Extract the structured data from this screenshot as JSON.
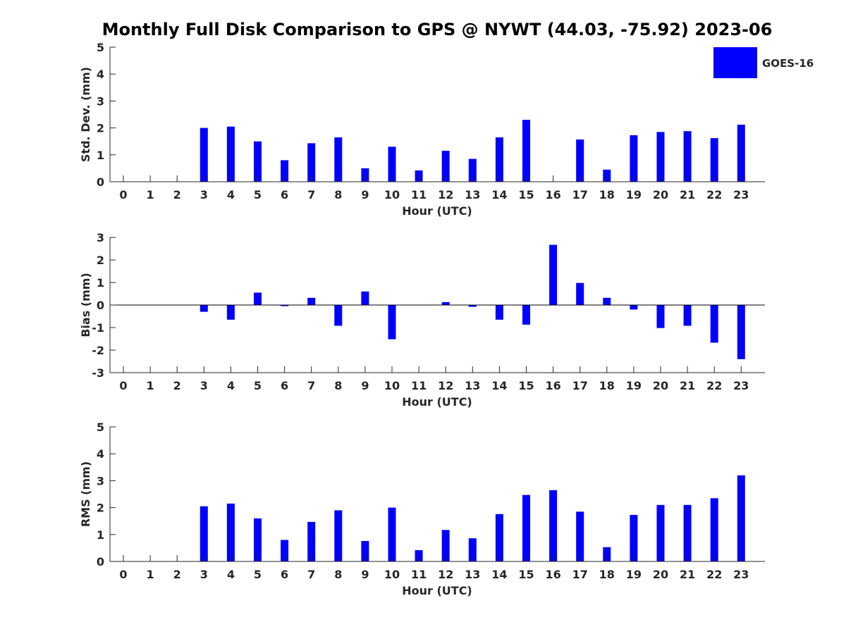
{
  "title": "Monthly Full Disk Comparison to GPS @ NYWT (44.03, -75.92) 2023-06",
  "colors": {
    "bar": "#0000ff",
    "axis": "#262626",
    "background": "#ffffff"
  },
  "legend": {
    "label": "GOES-16",
    "placement": "top-right"
  },
  "chart_data": [
    {
      "type": "bar",
      "title": "",
      "xlabel": "Hour (UTC)",
      "ylabel": "Std. Dev. (mm)",
      "ylim": [
        0,
        5
      ],
      "yticks": [
        0,
        1,
        2,
        3,
        4,
        5
      ],
      "categories": [
        "0",
        "1",
        "2",
        "3",
        "4",
        "5",
        "6",
        "7",
        "8",
        "9",
        "10",
        "11",
        "12",
        "13",
        "14",
        "15",
        "16",
        "17",
        "18",
        "19",
        "20",
        "21",
        "22",
        "23"
      ],
      "series": [
        {
          "name": "GOES-16",
          "values": [
            null,
            null,
            null,
            2.0,
            2.05,
            1.5,
            0.8,
            1.43,
            1.65,
            0.5,
            1.3,
            0.42,
            1.15,
            0.85,
            1.65,
            2.3,
            null,
            1.57,
            0.45,
            1.73,
            1.85,
            1.88,
            1.62,
            2.12
          ]
        }
      ],
      "grid": false
    },
    {
      "type": "bar",
      "title": "",
      "xlabel": "Hour (UTC)",
      "ylabel": "Bias (mm)",
      "ylim": [
        -3,
        3
      ],
      "yticks": [
        -3,
        -2,
        -1,
        0,
        1,
        2,
        3
      ],
      "categories": [
        "0",
        "1",
        "2",
        "3",
        "4",
        "5",
        "6",
        "7",
        "8",
        "9",
        "10",
        "11",
        "12",
        "13",
        "14",
        "15",
        "16",
        "17",
        "18",
        "19",
        "20",
        "21",
        "22",
        "23"
      ],
      "series": [
        {
          "name": "GOES-16",
          "values": [
            null,
            null,
            null,
            -0.3,
            -0.65,
            0.55,
            -0.05,
            0.32,
            -0.92,
            0.6,
            -1.52,
            null,
            0.13,
            -0.08,
            -0.65,
            -0.87,
            2.67,
            0.98,
            0.32,
            -0.2,
            -1.02,
            -0.92,
            -1.67,
            -2.4
          ]
        }
      ],
      "grid": false
    },
    {
      "type": "bar",
      "title": "",
      "xlabel": "Hour (UTC)",
      "ylabel": "RMS (mm)",
      "ylim": [
        0,
        5
      ],
      "yticks": [
        0,
        1,
        2,
        3,
        4,
        5
      ],
      "categories": [
        "0",
        "1",
        "2",
        "3",
        "4",
        "5",
        "6",
        "7",
        "8",
        "9",
        "10",
        "11",
        "12",
        "13",
        "14",
        "15",
        "16",
        "17",
        "18",
        "19",
        "20",
        "21",
        "22",
        "23"
      ],
      "series": [
        {
          "name": "GOES-16",
          "values": [
            null,
            null,
            null,
            2.05,
            2.15,
            1.6,
            0.8,
            1.47,
            1.9,
            0.76,
            2.0,
            0.42,
            1.17,
            0.86,
            1.76,
            2.47,
            2.65,
            1.85,
            0.53,
            1.73,
            2.1,
            2.1,
            2.35,
            3.2
          ]
        }
      ],
      "grid": false
    }
  ]
}
